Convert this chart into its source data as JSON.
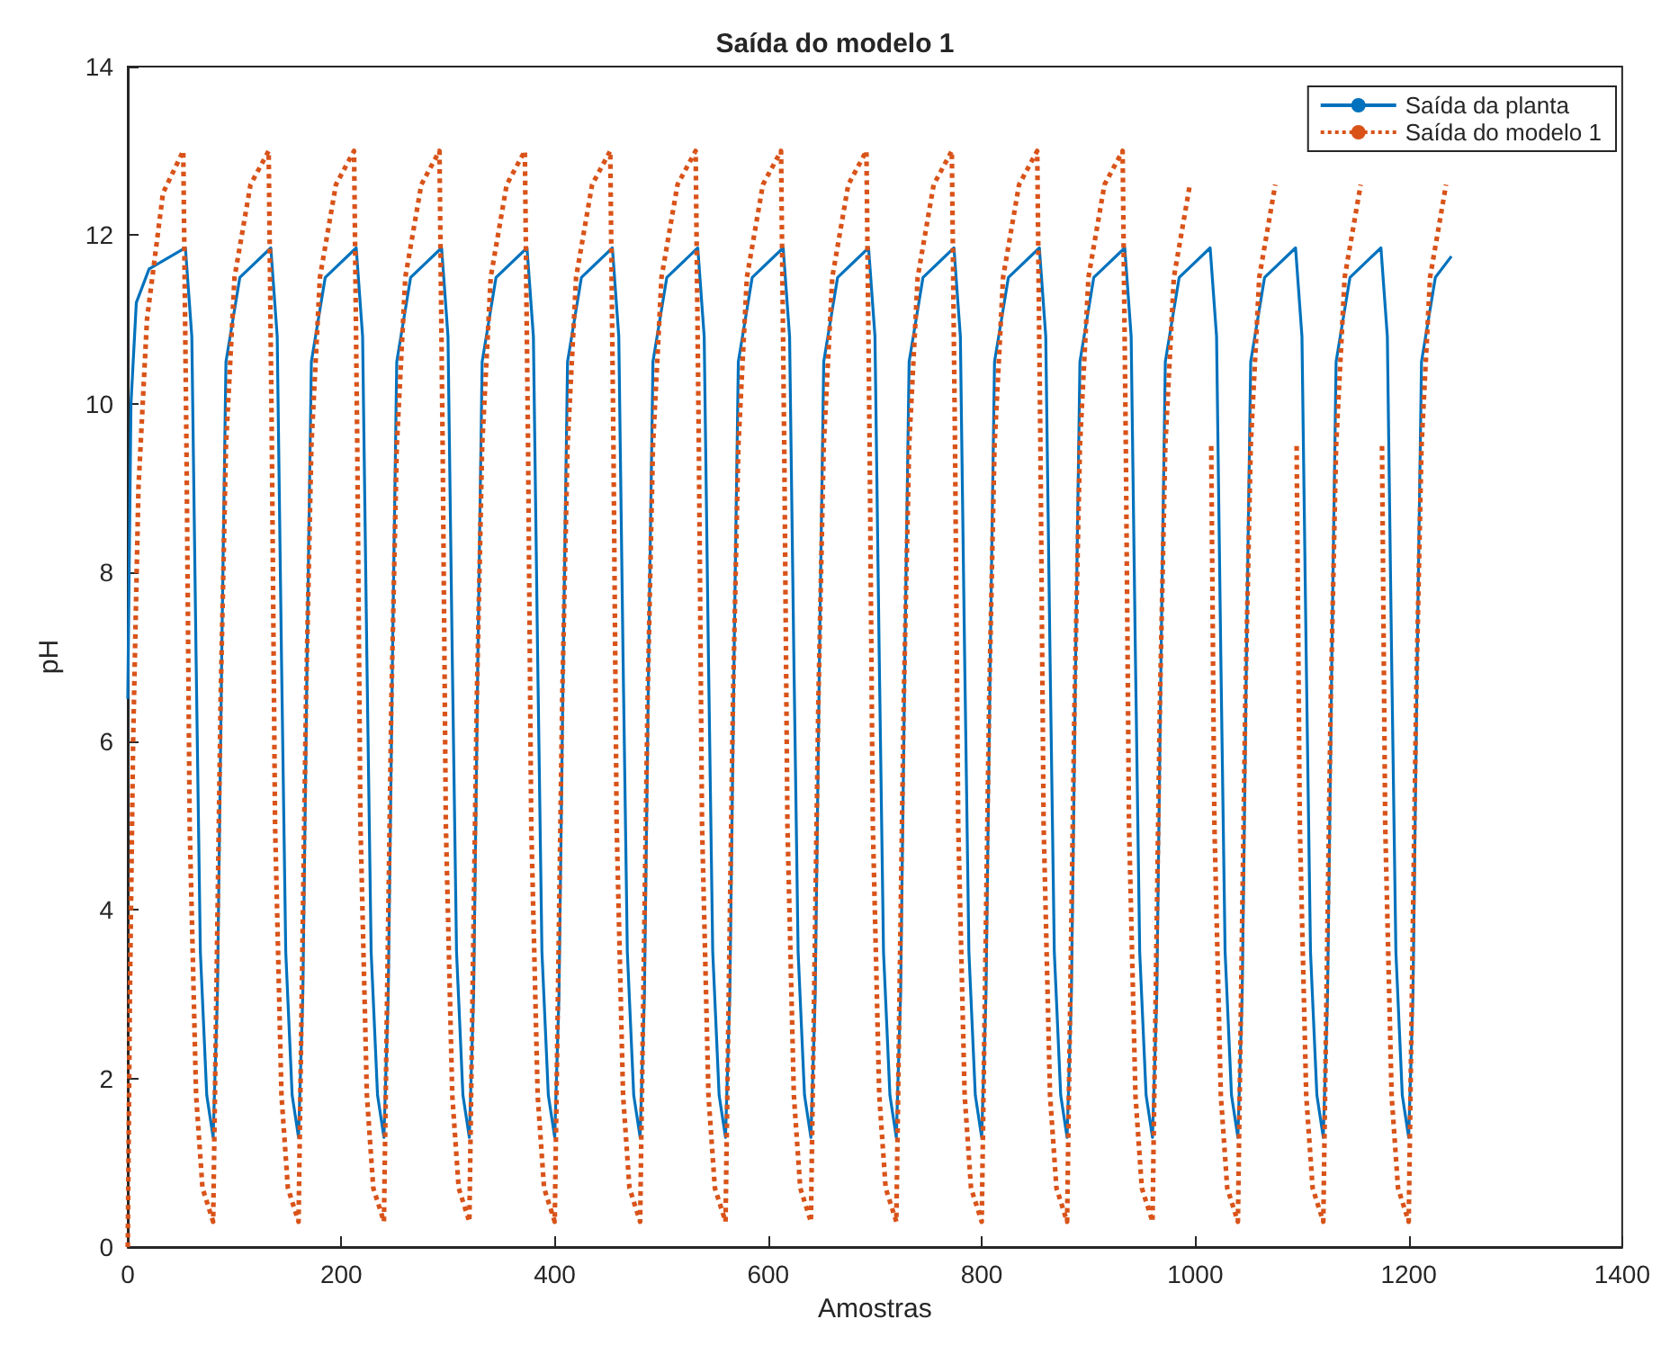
{
  "chart_data": {
    "type": "line",
    "title": "Saída do modelo 1",
    "xlabel": "Amostras",
    "ylabel": "pH",
    "xlim": [
      0,
      1400
    ],
    "xticks": [
      0,
      200,
      400,
      600,
      800,
      1000,
      1200,
      1400
    ],
    "ylim": [
      0,
      14
    ],
    "yticks": [
      0,
      2,
      4,
      6,
      8,
      10,
      12,
      14
    ],
    "grid": false,
    "legend": "top right",
    "marker": "none",
    "series": [
      {
        "name": "Saída da planta",
        "color": "#0072bd",
        "line_style": "solid",
        "x": [
          0,
          3,
          8,
          20,
          54,
          60,
          64,
          68,
          74,
          80,
          84,
          88,
          92,
          105,
          134,
          140,
          144,
          148,
          154,
          160,
          164,
          168,
          172,
          185,
          214,
          220,
          224,
          228,
          234,
          240,
          244,
          248,
          252,
          265,
          294,
          300,
          304,
          308,
          314,
          320,
          324,
          328,
          332,
          345,
          374,
          380,
          384,
          388,
          394,
          400,
          404,
          408,
          412,
          425,
          454,
          460,
          464,
          468,
          474,
          480,
          484,
          488,
          492,
          505,
          534,
          540,
          544,
          548,
          554,
          560,
          564,
          568,
          572,
          585,
          614,
          620,
          624,
          628,
          634,
          640,
          644,
          648,
          652,
          665,
          694,
          700,
          704,
          708,
          714,
          720,
          724,
          728,
          732,
          745,
          774,
          780,
          784,
          788,
          794,
          800,
          804,
          808,
          812,
          825,
          854,
          860,
          864,
          868,
          874,
          880,
          884,
          888,
          892,
          905,
          934,
          940,
          944,
          948,
          954,
          960,
          964,
          968,
          972,
          985,
          1014,
          1020,
          1024,
          1028,
          1034,
          1040,
          1044,
          1048,
          1052,
          1065,
          1094,
          1100,
          1104,
          1108,
          1114,
          1120,
          1124,
          1128,
          1132,
          1145,
          1174,
          1180,
          1184,
          1188,
          1194,
          1200,
          1204,
          1208,
          1212,
          1225,
          1240
        ],
        "values": [
          6.5,
          10,
          11.2,
          11.6,
          11.85,
          10.8,
          7,
          3.5,
          1.8,
          1.3,
          3,
          7,
          10.5,
          11.5,
          11.85,
          10.8,
          7,
          3.5,
          1.8,
          1.3,
          3,
          7,
          10.5,
          11.5,
          11.85,
          10.8,
          7,
          3.5,
          1.8,
          1.3,
          3,
          7,
          10.5,
          11.5,
          11.85,
          10.8,
          7,
          3.5,
          1.8,
          1.3,
          3,
          7,
          10.5,
          11.5,
          11.85,
          10.8,
          7,
          3.5,
          1.8,
          1.3,
          3,
          7,
          10.5,
          11.5,
          11.85,
          10.8,
          7,
          3.5,
          1.8,
          1.3,
          3,
          7,
          10.5,
          11.5,
          11.85,
          10.8,
          7,
          3.5,
          1.8,
          1.3,
          3,
          7,
          10.5,
          11.5,
          11.85,
          10.8,
          7,
          3.5,
          1.8,
          1.3,
          3,
          7,
          10.5,
          11.5,
          11.85,
          10.8,
          7,
          3.5,
          1.8,
          1.3,
          3,
          7,
          10.5,
          11.5,
          11.85,
          10.8,
          7,
          3.5,
          1.8,
          1.3,
          3,
          7,
          10.5,
          11.5,
          11.85,
          10.8,
          7,
          3.5,
          1.8,
          1.3,
          3,
          7,
          10.5,
          11.5,
          11.85,
          10.8,
          7,
          3.5,
          1.8,
          1.3,
          3,
          7,
          10.5,
          11.5,
          11.85,
          10.8,
          7,
          3.5,
          1.8,
          1.3,
          3,
          7,
          10.5,
          11.5,
          11.85,
          10.8,
          7,
          3.5,
          1.8,
          1.3,
          3,
          7,
          10.5,
          11.5,
          11.85,
          10.8,
          7,
          3.5,
          1.8,
          1.3,
          3,
          7,
          10.5,
          11.5,
          11.75
        ]
      },
      {
        "name": "Saída do modelo 1",
        "color": "#d95319",
        "line_style": "dotted",
        "x": [
          0,
          2,
          5,
          10,
          18,
          33,
          52,
          55,
          58,
          64,
          70,
          80,
          83,
          87,
          92,
          100,
          115,
          132,
          135,
          138,
          144,
          150,
          160,
          163,
          167,
          172,
          180,
          195,
          212,
          215,
          218,
          224,
          230,
          240,
          243,
          247,
          252,
          260,
          275,
          292,
          295,
          298,
          304,
          310,
          320,
          323,
          327,
          332,
          340,
          355,
          372,
          375,
          378,
          384,
          390,
          400,
          403,
          407,
          412,
          420,
          435,
          452,
          455,
          458,
          464,
          470,
          480,
          483,
          487,
          492,
          500,
          515,
          532,
          535,
          538,
          544,
          550,
          560,
          563,
          567,
          572,
          580,
          595,
          612,
          615,
          618,
          624,
          630,
          640,
          643,
          647,
          652,
          660,
          675,
          692,
          695,
          698,
          704,
          710,
          720,
          723,
          727,
          732,
          740,
          755,
          772,
          775,
          778,
          784,
          790,
          800,
          803,
          807,
          812,
          820,
          835,
          852,
          855,
          858,
          864,
          870,
          880,
          883,
          887,
          892,
          900,
          915,
          932,
          935,
          938,
          944,
          950,
          960,
          963,
          967,
          972,
          980,
          995,
          1012,
          1015,
          1018,
          1024,
          1030,
          1040,
          1043,
          1047,
          1052,
          1060,
          1075,
          1092,
          1095,
          1098,
          1104,
          1110,
          1120,
          1123,
          1127,
          1132,
          1140,
          1155,
          1172,
          1175,
          1178,
          1184,
          1190,
          1200,
          1203,
          1207,
          1212,
          1220,
          1235
        ],
        "values": [
          0,
          3,
          6,
          9,
          11,
          12.5,
          13,
          9.5,
          5,
          1.8,
          0.7,
          0.3,
          3,
          6.5,
          9.5,
          11.5,
          12.6,
          13,
          9.5,
          5,
          1.8,
          0.7,
          0.3,
          3,
          6.5,
          9.5,
          11.5,
          12.6,
          13,
          9.5,
          5,
          1.8,
          0.7,
          0.3,
          3,
          6.5,
          9.5,
          11.5,
          12.6,
          13,
          9.5,
          5,
          1.8,
          0.7,
          0.3,
          3,
          6.5,
          9.5,
          11.5,
          12.6,
          13,
          9.5,
          5,
          1.8,
          0.7,
          0.3,
          3,
          6.5,
          9.5,
          11.5,
          12.6,
          13,
          9.5,
          5,
          1.8,
          0.7,
          0.3,
          3,
          6.5,
          9.5,
          11.5,
          12.6,
          13,
          9.5,
          5,
          1.8,
          0.7,
          0.3,
          3,
          6.5,
          9.5,
          11.5,
          12.6,
          13,
          9.5,
          5,
          1.8,
          0.7,
          0.3,
          3,
          6.5,
          9.5,
          11.5,
          12.6,
          13,
          9.5,
          5,
          1.8,
          0.7,
          0.3,
          3,
          6.5,
          9.5,
          11.5,
          12.6,
          13,
          9.5,
          5,
          1.8,
          0.7,
          0.3,
          3,
          6.5,
          9.5,
          11.5,
          12.6,
          13,
          9.5,
          5,
          1.8,
          0.7,
          0.3,
          3,
          6.5,
          9.5,
          11.5,
          12.6,
          13,
          9.5,
          5,
          1.8,
          0.7,
          0.3,
          3,
          6.5,
          9.5,
          11.5,
          12.6,
          null,
          9.5,
          5,
          1.8,
          0.7,
          0.3,
          3,
          6.5,
          9.5,
          11.5,
          12.6,
          null,
          9.5,
          5,
          1.8,
          0.7,
          0.3,
          3,
          6.5,
          9.5,
          11.5,
          12.6,
          null,
          9.5,
          5,
          1.8,
          0.7,
          0.3,
          3,
          6.5,
          9.5,
          11.5,
          12.6
        ]
      }
    ]
  }
}
